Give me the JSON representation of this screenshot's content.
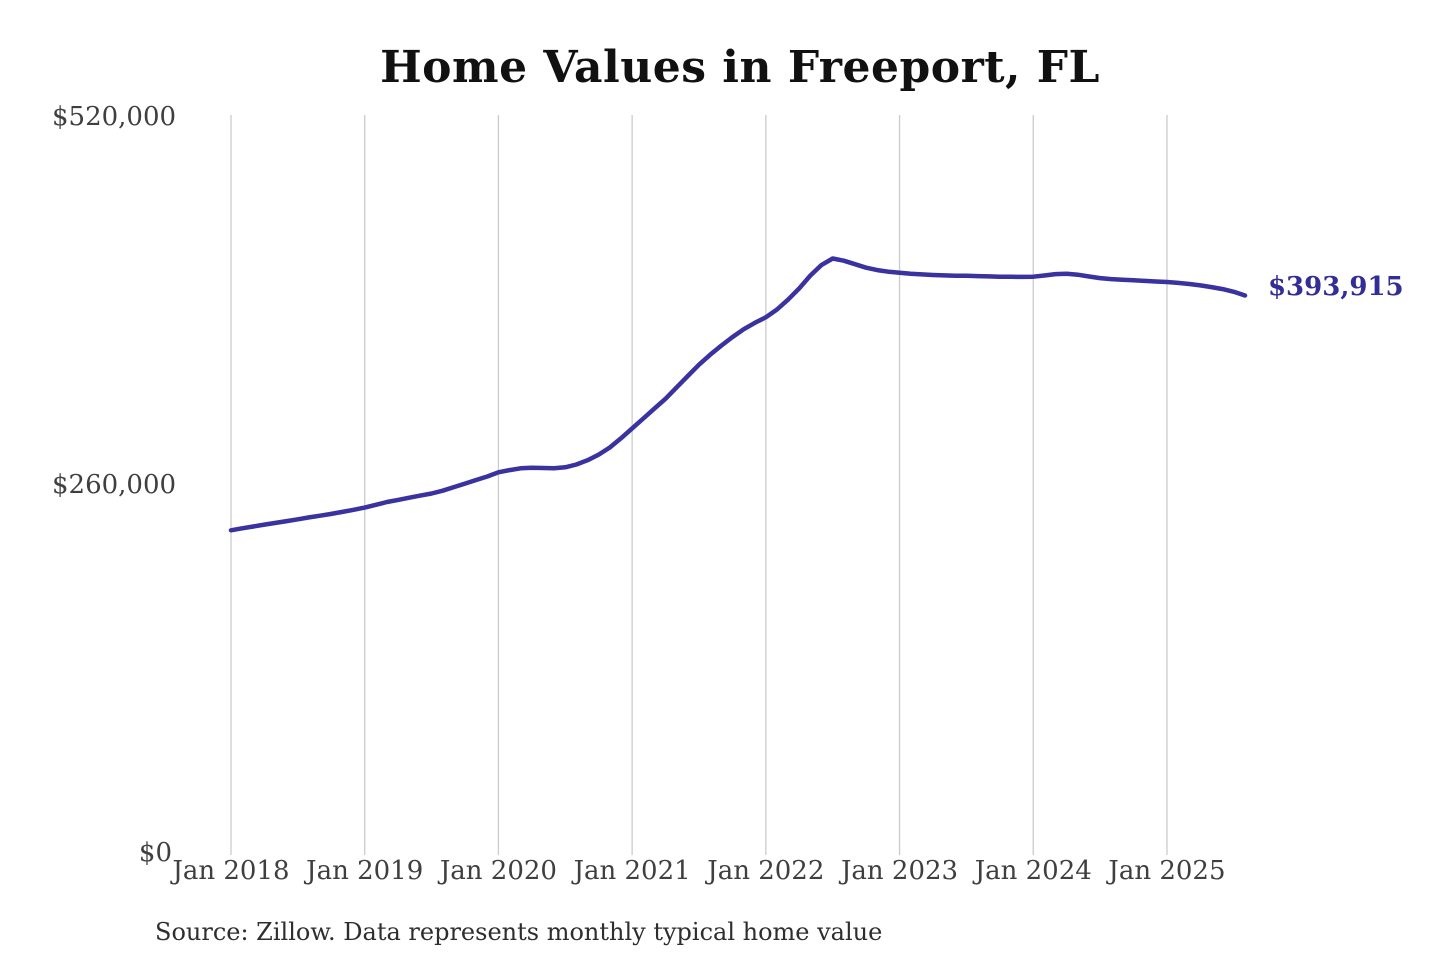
{
  "header": {
    "title": "Home Values in Freeport, FL"
  },
  "footer": {
    "source_note": "Source: Zillow. Data represents monthly typical home value"
  },
  "colors": {
    "line": "#3a329e",
    "final_label": "#332d96",
    "grid": "#cbcbcb",
    "axis_text": "#3f3f3f",
    "title_text": "#111111",
    "background": "#ffffff"
  },
  "chart_data": {
    "type": "line",
    "title": "Home Values in Freeport, FL",
    "xlabel": "",
    "ylabel": "",
    "ylim": [
      0,
      520000
    ],
    "grid": "vertical-only",
    "legend": "none",
    "y_tick_values": [
      0,
      260000,
      520000
    ],
    "y_tick_labels": [
      "$0",
      "$260,000",
      "$520,000"
    ],
    "x_tick_labels": [
      "Jan 2018",
      "Jan 2019",
      "Jan 2020",
      "Jan 2021",
      "Jan 2022",
      "Jan 2023",
      "Jan 2024",
      "Jan 2025"
    ],
    "start_month": "2018-01",
    "end_month": "2025-08",
    "months_per_tick": 12,
    "final_value": 393915,
    "final_value_label": "$393,915",
    "series": [
      {
        "name": "Monthly typical home value",
        "color": "#3a329e",
        "monthly_values": [
          228000,
          229400,
          230700,
          232000,
          233200,
          234500,
          235800,
          237100,
          238300,
          239600,
          241000,
          242500,
          244000,
          246000,
          248000,
          249500,
          251000,
          252500,
          254000,
          256000,
          258500,
          261000,
          263500,
          266000,
          269000,
          270500,
          271800,
          272200,
          272000,
          271800,
          272500,
          274500,
          277500,
          281500,
          286500,
          293000,
          300000,
          307000,
          314000,
          321000,
          329000,
          337000,
          345000,
          352000,
          358500,
          364500,
          370000,
          374500,
          378500,
          384000,
          391000,
          399000,
          408000,
          415500,
          420000,
          418500,
          416000,
          413500,
          411800,
          410700,
          410000,
          409300,
          408800,
          408400,
          408100,
          407900,
          407800,
          407600,
          407400,
          407200,
          407100,
          407000,
          407200,
          408000,
          409000,
          409300,
          408600,
          407300,
          406200,
          405500,
          405000,
          404600,
          404200,
          403800,
          403400,
          402800,
          402000,
          401000,
          399800,
          398400,
          396500,
          393915
        ]
      }
    ]
  }
}
